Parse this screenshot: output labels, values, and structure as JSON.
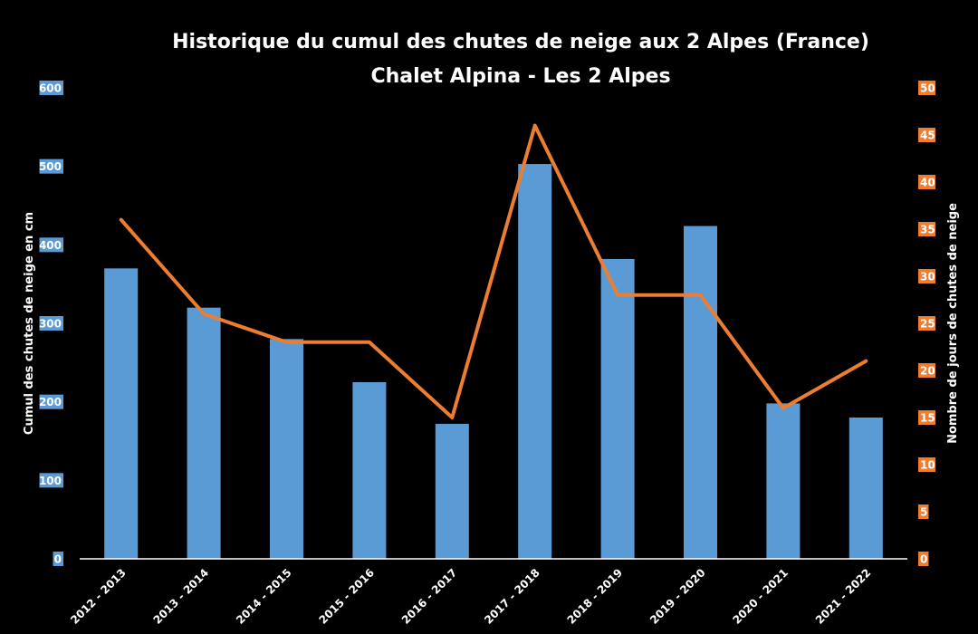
{
  "chart_data": {
    "type": "bar",
    "title": "Historique du cumul des chutes de neige aux 2 Alpes (France)",
    "subtitle": "Chalet Alpina - Les 2 Alpes",
    "categories": [
      "2012 - 2013",
      "2013 - 2014",
      "2014 - 2015",
      "2015 - 2016",
      "2016 - 2017",
      "2017 - 2018",
      "2018 - 2019",
      "2019 - 2020",
      "2020 - 2021",
      "2021 - 2022"
    ],
    "series": [
      {
        "type": "bar",
        "axis": "left",
        "color": "#5b9bd5",
        "values": [
          370,
          320,
          280,
          225,
          172,
          503,
          382,
          424,
          198,
          180
        ]
      },
      {
        "type": "line",
        "axis": "right",
        "color": "#ed7d31",
        "values": [
          36,
          26,
          23,
          23,
          15,
          46,
          28,
          28,
          16,
          21
        ]
      }
    ],
    "ylabel": "Cumul des chutes de neige en cm",
    "ylabel_right": "Nombre de jours de chutes de neige",
    "ylim": [
      0,
      600
    ],
    "ylim_right": [
      0,
      50
    ],
    "yticks": [
      0,
      100,
      200,
      300,
      400,
      500,
      600
    ],
    "yticks_right": [
      0,
      5,
      10,
      15,
      20,
      25,
      30,
      35,
      40,
      45,
      50
    ],
    "left_tick_bg": "#5b9bd5",
    "right_tick_bg": "#ed7d31",
    "grid": false,
    "legend": "none"
  }
}
